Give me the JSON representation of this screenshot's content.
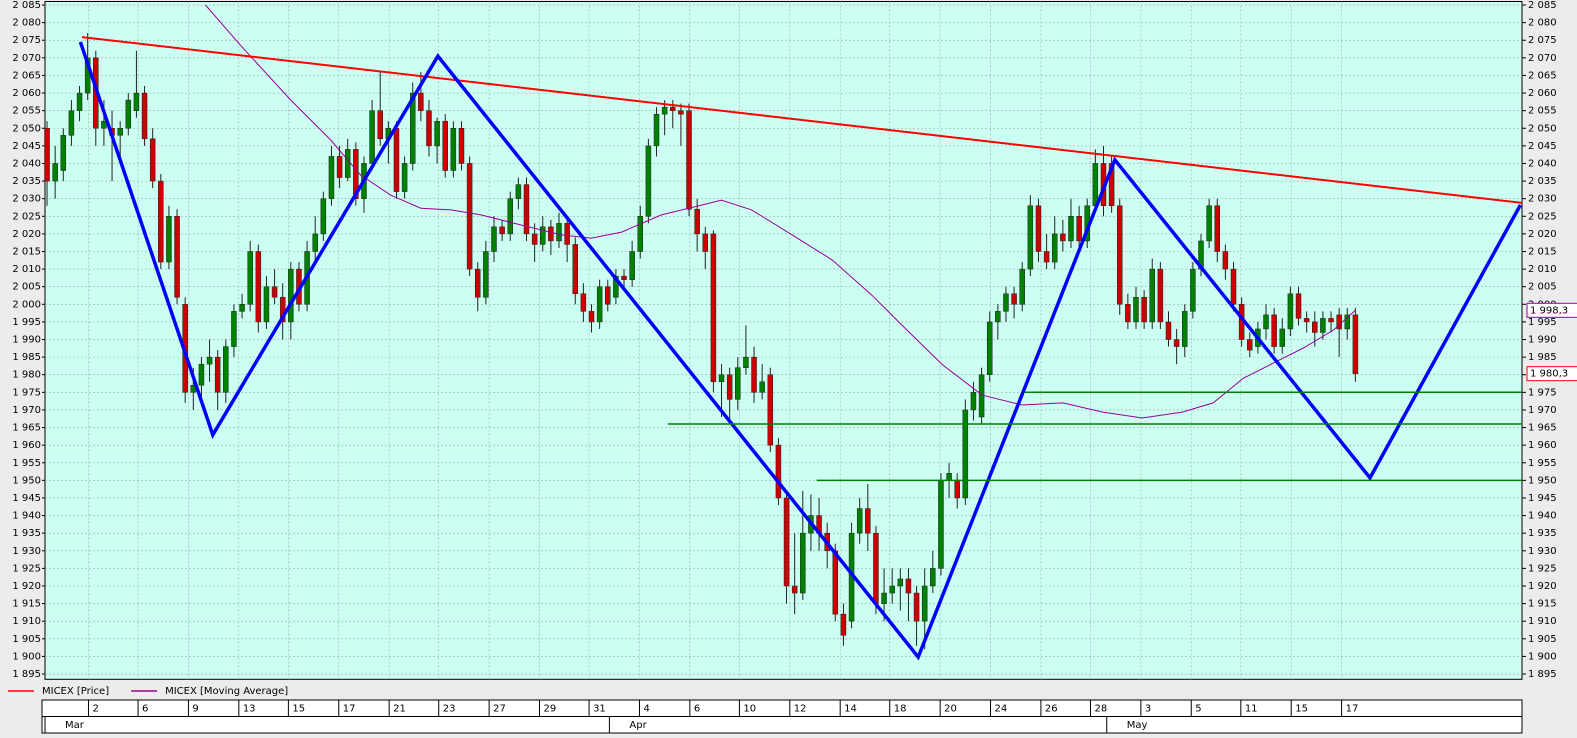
{
  "chart_data": {
    "type": "candlestick",
    "xlim": [
      -0.25,
      181.5
    ],
    "ylim": [
      1893.5,
      2086
    ],
    "grid": true,
    "background": "#ccfff2",
    "xticks": [
      {
        "value": 5.1,
        "label": "2"
      },
      {
        "value": 11.2,
        "label": "6"
      },
      {
        "value": 17.4,
        "label": "9"
      },
      {
        "value": 23.6,
        "label": "13"
      },
      {
        "value": 29.7,
        "label": "15"
      },
      {
        "value": 35.9,
        "label": "17"
      },
      {
        "value": 42.1,
        "label": "21"
      },
      {
        "value": 48.2,
        "label": "23"
      },
      {
        "value": 54.4,
        "label": "27"
      },
      {
        "value": 60.6,
        "label": "29"
      },
      {
        "value": 66.7,
        "label": "31"
      },
      {
        "value": 72.9,
        "label": "4"
      },
      {
        "value": 79.1,
        "label": "6"
      },
      {
        "value": 85.2,
        "label": "10"
      },
      {
        "value": 91.4,
        "label": "12"
      },
      {
        "value": 97.6,
        "label": "14"
      },
      {
        "value": 103.7,
        "label": "18"
      },
      {
        "value": 109.9,
        "label": "20"
      },
      {
        "value": 116.1,
        "label": "24"
      },
      {
        "value": 122.3,
        "label": "26"
      },
      {
        "value": 128.4,
        "label": "28"
      },
      {
        "value": 134.6,
        "label": "3"
      },
      {
        "value": 140.8,
        "label": "5"
      },
      {
        "value": 146.9,
        "label": "11"
      },
      {
        "value": 153.1,
        "label": "15"
      },
      {
        "value": 159.3,
        "label": "17"
      }
    ],
    "month_ticks": [
      {
        "value": -0.25,
        "label": "Mar"
      },
      {
        "value": 69.2,
        "label": "Apr"
      },
      {
        "value": 130.4,
        "label": "May"
      }
    ],
    "yticks": [
      {
        "value": 1895,
        "label": "1 895"
      },
      {
        "value": 1900,
        "label": "1 900"
      },
      {
        "value": 1905,
        "label": "1 905"
      },
      {
        "value": 1910,
        "label": "1 910"
      },
      {
        "value": 1915,
        "label": "1 915"
      },
      {
        "value": 1920,
        "label": "1 920"
      },
      {
        "value": 1925,
        "label": "1 925"
      },
      {
        "value": 1930,
        "label": "1 930"
      },
      {
        "value": 1935,
        "label": "1 935"
      },
      {
        "value": 1940,
        "label": "1 940"
      },
      {
        "value": 1945,
        "label": "1 945"
      },
      {
        "value": 1950,
        "label": "1 950"
      },
      {
        "value": 1955,
        "label": "1 955"
      },
      {
        "value": 1960,
        "label": "1 960"
      },
      {
        "value": 1965,
        "label": "1 965"
      },
      {
        "value": 1970,
        "label": "1 970"
      },
      {
        "value": 1975,
        "label": "1 975"
      },
      {
        "value": 1980,
        "label": "1 980"
      },
      {
        "value": 1985,
        "label": "1 985"
      },
      {
        "value": 1990,
        "label": "1 990"
      },
      {
        "value": 1995,
        "label": "1 995"
      },
      {
        "value": 2000,
        "label": "2 000"
      },
      {
        "value": 2005,
        "label": "2 005"
      },
      {
        "value": 2010,
        "label": "2 010"
      },
      {
        "value": 2015,
        "label": "2 015"
      },
      {
        "value": 2020,
        "label": "2 020"
      },
      {
        "value": 2025,
        "label": "2 025"
      },
      {
        "value": 2030,
        "label": "2 030"
      },
      {
        "value": 2035,
        "label": "2 035"
      },
      {
        "value": 2040,
        "label": "2 040"
      },
      {
        "value": 2045,
        "label": "2 045"
      },
      {
        "value": 2050,
        "label": "2 050"
      },
      {
        "value": 2055,
        "label": "2 055"
      },
      {
        "value": 2060,
        "label": "2 060"
      },
      {
        "value": 2065,
        "label": "2 065"
      },
      {
        "value": 2070,
        "label": "2 070"
      },
      {
        "value": 2075,
        "label": "2 075"
      },
      {
        "value": 2080,
        "label": "2 080"
      },
      {
        "value": 2085,
        "label": "2 085"
      }
    ],
    "series": [
      {
        "name": "MICEX [Price]",
        "color": "#ff0000",
        "up_color": "#008000",
        "down_color": "#cc0000",
        "last_value_label": "1 980,3",
        "open": [
          2050,
          2035,
          2038,
          2048,
          2055,
          2060,
          2070,
          2050,
          2050,
          2048,
          2050,
          2055,
          2060,
          2047,
          2035,
          2012,
          2025,
          2000,
          1975,
          1977,
          1983,
          1985,
          1975,
          1988,
          1998,
          2000,
          2015,
          1995,
          2005,
          2002,
          1995,
          2010,
          2000,
          2015,
          2020,
          2030,
          2042,
          2036,
          2044,
          2030,
          2040,
          2055,
          2047,
          2050,
          2032,
          2040,
          2060,
          2055,
          2045,
          2052,
          2038,
          2050,
          2040,
          2010,
          2002,
          2015,
          2022,
          2020,
          2030,
          2034,
          2020,
          2017,
          2022,
          2018,
          2023,
          2017,
          2003,
          1998,
          1995,
          2005,
          2002,
          2008,
          2007,
          2015,
          2025,
          2045,
          2054,
          2056,
          2055,
          2055,
          2027,
          2020,
          2020,
          1978,
          1980,
          1973,
          1982,
          1985,
          1975,
          1980,
          1960,
          1945,
          1920,
          1918,
          1935,
          1940,
          1935,
          1930,
          1912,
          1910,
          1935,
          1942,
          1935,
          1915,
          1918,
          1920,
          1922,
          1918,
          1910,
          1920,
          1925,
          1950,
          1950,
          1945,
          1970,
          1968,
          1980,
          1995,
          1998,
          2003,
          2000,
          2010,
          2028,
          2015,
          2012,
          2020,
          2018,
          2025,
          2018,
          2028,
          2040,
          2040,
          2028,
          2000,
          1995,
          2002,
          1995,
          2010,
          1995,
          1990,
          1988,
          1998,
          2010,
          2018,
          2028,
          2015,
          2010,
          2000,
          1990,
          1988,
          1993,
          1997,
          1988,
          1993,
          2003,
          1996,
          1995,
          1992,
          1996,
          1997,
          1993,
          1997
        ],
        "high": [
          2052,
          2045,
          2050,
          2058,
          2062,
          2077,
          2072,
          2058,
          2055,
          2052,
          2060,
          2072,
          2062,
          2050,
          2037,
          2028,
          2027,
          2002,
          1982,
          1985,
          1990,
          1987,
          1990,
          2000,
          2003,
          2018,
          2017,
          2008,
          2010,
          2006,
          2012,
          2012,
          2018,
          2025,
          2032,
          2045,
          2045,
          2047,
          2046,
          2042,
          2058,
          2066,
          2052,
          2052,
          2042,
          2063,
          2066,
          2058,
          2053,
          2054,
          2052,
          2052,
          2042,
          2012,
          2018,
          2025,
          2024,
          2032,
          2036,
          2036,
          2023,
          2025,
          2024,
          2026,
          2025,
          2019,
          2006,
          2000,
          2007,
          2007,
          2010,
          2010,
          2018,
          2028,
          2047,
          2056,
          2058,
          2058,
          2057,
          2057,
          2030,
          2022,
          2021,
          1983,
          1982,
          1985,
          1994,
          1988,
          1983,
          1982,
          1962,
          1947,
          1935,
          1947,
          1946,
          1945,
          1938,
          1932,
          1915,
          1938,
          1945,
          1949,
          1937,
          1925,
          1925,
          1925,
          1925,
          1920,
          1925,
          1930,
          1952,
          1955,
          1952,
          1973,
          1978,
          1982,
          1998,
          2000,
          2005,
          2005,
          2012,
          2031,
          2030,
          2020,
          2025,
          2024,
          2030,
          2028,
          2030,
          2044,
          2045,
          2042,
          2030,
          2003,
          2005,
          2004,
          2013,
          2012,
          1998,
          1993,
          2000,
          2012,
          2020,
          2030,
          2030,
          2017,
          2012,
          2002,
          1992,
          1995,
          2000,
          1999,
          1996,
          2005,
          2005,
          1998,
          1998,
          1998,
          1998,
          1999,
          1999,
          1999
        ],
        "low": [
          2028,
          2030,
          2035,
          2045,
          2052,
          2058,
          2045,
          2045,
          2035,
          2040,
          2048,
          2053,
          2045,
          2033,
          2010,
          2010,
          2000,
          1972,
          1970,
          1972,
          1978,
          1970,
          1972,
          1985,
          1996,
          1998,
          1992,
          1993,
          2000,
          1990,
          1990,
          1998,
          1998,
          2012,
          2018,
          2028,
          2033,
          2035,
          2028,
          2026,
          2038,
          2045,
          2040,
          2030,
          2030,
          2038,
          2052,
          2042,
          2040,
          2036,
          2036,
          2038,
          2008,
          1998,
          2000,
          2012,
          2018,
          2018,
          2027,
          2018,
          2012,
          2015,
          2014,
          2016,
          2012,
          2000,
          1995,
          1992,
          1993,
          1998,
          2000,
          2005,
          2005,
          2013,
          2023,
          2042,
          2048,
          2050,
          2045,
          2025,
          2015,
          2010,
          1975,
          1968,
          1966,
          1970,
          1980,
          1972,
          1973,
          1958,
          1943,
          1915,
          1912,
          1916,
          1930,
          1930,
          1925,
          1910,
          1903,
          1908,
          1932,
          1930,
          1912,
          1910,
          1915,
          1913,
          1910,
          1903,
          1902,
          1918,
          1923,
          1945,
          1942,
          1943,
          1967,
          1966,
          1978,
          1990,
          1995,
          1996,
          1998,
          2008,
          2012,
          2010,
          2010,
          2015,
          2016,
          2015,
          2016,
          2026,
          2025,
          2026,
          1997,
          1993,
          1993,
          1993,
          1993,
          1993,
          1988,
          1983,
          1985,
          1996,
          2008,
          2016,
          2012,
          2007,
          1998,
          1988,
          1985,
          1986,
          1990,
          1986,
          1986,
          1991,
          1994,
          1992,
          1988,
          1990,
          1992,
          1985,
          1990,
          1978
        ],
        "close": [
          2035,
          2040,
          2048,
          2055,
          2060,
          2070,
          2050,
          2052,
          2048,
          2050,
          2058,
          2060,
          2047,
          2035,
          2012,
          2025,
          2002,
          1975,
          1977,
          1983,
          1985,
          1975,
          1988,
          1998,
          2000,
          2015,
          1995,
          2005,
          2002,
          1995,
          2010,
          2000,
          2015,
          2020,
          2030,
          2042,
          2036,
          2044,
          2030,
          2040,
          2055,
          2047,
          2050,
          2032,
          2040,
          2060,
          2055,
          2045,
          2052,
          2038,
          2050,
          2040,
          2010,
          2002,
          2015,
          2022,
          2020,
          2030,
          2034,
          2020,
          2017,
          2022,
          2018,
          2023,
          2017,
          2003,
          1998,
          1995,
          2005,
          2000,
          2008,
          2007,
          2015,
          2025,
          2045,
          2054,
          2056,
          2055,
          2054,
          2027,
          2020,
          2015,
          1978,
          1980,
          1973,
          1982,
          1985,
          1975,
          1978,
          1960,
          1945,
          1920,
          1918,
          1935,
          1940,
          1935,
          1930,
          1912,
          1906,
          1935,
          1942,
          1935,
          1915,
          1918,
          1920,
          1922,
          1918,
          1910,
          1920,
          1925,
          1950,
          1952,
          1945,
          1970,
          1975,
          1980,
          1995,
          1998,
          2003,
          2000,
          2010,
          2028,
          2015,
          2012,
          2020,
          2018,
          2025,
          2018,
          2028,
          2040,
          2028,
          2028,
          2000,
          1995,
          2002,
          1995,
          2010,
          1995,
          1990,
          1988,
          1998,
          2010,
          2018,
          2028,
          2015,
          2010,
          2000,
          1990,
          1987,
          1993,
          1997,
          1988,
          1993,
          2003,
          1996,
          1995,
          1992,
          1996,
          1995,
          1993,
          1997,
          1980.3
        ]
      },
      {
        "name": "MICEX [Moving Average]",
        "type": "line",
        "color": "#990099",
        "last_value_label": "1 998,3",
        "x": [
          19.5,
          23.8,
          30.0,
          34.9,
          38.6,
          42.3,
          46.0,
          49.7,
          53.4,
          58.4,
          63.3,
          67.0,
          70.7,
          75.6,
          80.6,
          83.0,
          86.7,
          91.7,
          96.6,
          101.5,
          105.2,
          110.2,
          115.1,
          120.0,
          125.0,
          129.9,
          134.8,
          139.7,
          143.5,
          147.2,
          150.9,
          154.6,
          158.3,
          161
        ],
        "values": [
          2085,
          2073.6,
          2058,
          2046.7,
          2036.7,
          2031,
          2027.3,
          2026.8,
          2025.4,
          2022.5,
          2019.7,
          2018.8,
          2020.5,
          2025.4,
          2028.2,
          2029.6,
          2026.8,
          2019.7,
          2012.6,
          2002.6,
          1994.1,
          1982.8,
          1974.2,
          1971.4,
          1972,
          1969.4,
          1967.7,
          1969.4,
          1972,
          1979,
          1983.3,
          1987.6,
          1992.7,
          1998.3
        ]
      }
    ],
    "trend_lines": [
      {
        "color": "#ff0000",
        "width": 2,
        "x": [
          4.3,
          181.5
        ],
        "values": [
          2075.9,
          2028.8
        ]
      },
      {
        "color": "#0000ff",
        "width": 3.5,
        "x": [
          4.1,
          20.4,
          48.1,
          107.2,
          131.4,
          162.8,
          181.3
        ],
        "values": [
          2074.5,
          1962.9,
          2070.5,
          1899.8,
          2041,
          1950.7,
          2028.2
        ]
      },
      {
        "color": "#008000",
        "width": 1.5,
        "x": [
          120.3,
          181.5
        ],
        "values": [
          1975,
          1975
        ]
      },
      {
        "color": "#008000",
        "width": 1.5,
        "x": [
          76.4,
          181.5
        ],
        "values": [
          1966,
          1966
        ]
      },
      {
        "color": "#008000",
        "width": 1.5,
        "x": [
          94.7,
          181.5
        ],
        "values": [
          1950,
          1950
        ]
      }
    ]
  }
}
